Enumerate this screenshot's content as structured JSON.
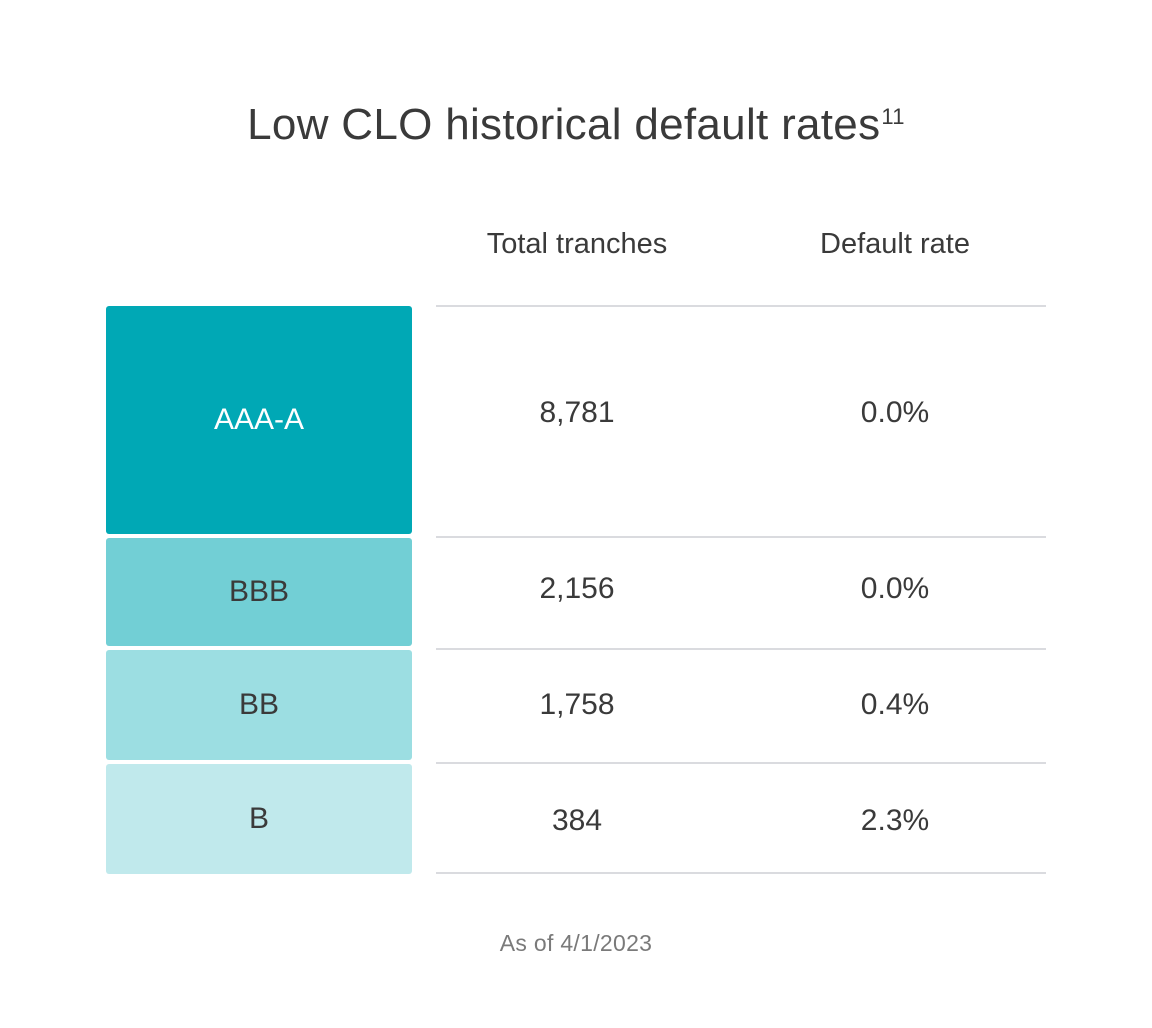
{
  "chart_data": {
    "type": "table",
    "title": "Low CLO historical default rates",
    "title_footnote_ref": "11",
    "columns": [
      "",
      "Total tranches",
      "Default rate"
    ],
    "rows": [
      {
        "rating": "AAA-A",
        "total_tranches": "8,781",
        "default_rate": "0.0%",
        "color": "#00a8b5",
        "text_color": "#ffffff"
      },
      {
        "rating": "BBB",
        "total_tranches": "2,156",
        "default_rate": "0.0%",
        "color": "#72cfd5",
        "text_color": "#3a3a3a"
      },
      {
        "rating": "BB",
        "total_tranches": "1,758",
        "default_rate": "0.4%",
        "color": "#9cdee2",
        "text_color": "#3a3a3a"
      },
      {
        "rating": "B",
        "total_tranches": "384",
        "default_rate": "2.3%",
        "color": "#c0e9ec",
        "text_color": "#3a3a3a"
      }
    ],
    "total_tranches_values": [
      8781,
      2156,
      1758,
      384
    ],
    "default_rate_values": [
      0.0,
      0.0,
      0.4,
      2.3
    ],
    "footnote": "As of 4/1/2023"
  },
  "colors": {
    "text": "#3a3a3a",
    "divider": "#dadbdf",
    "footnote": "#7a7a7a"
  }
}
